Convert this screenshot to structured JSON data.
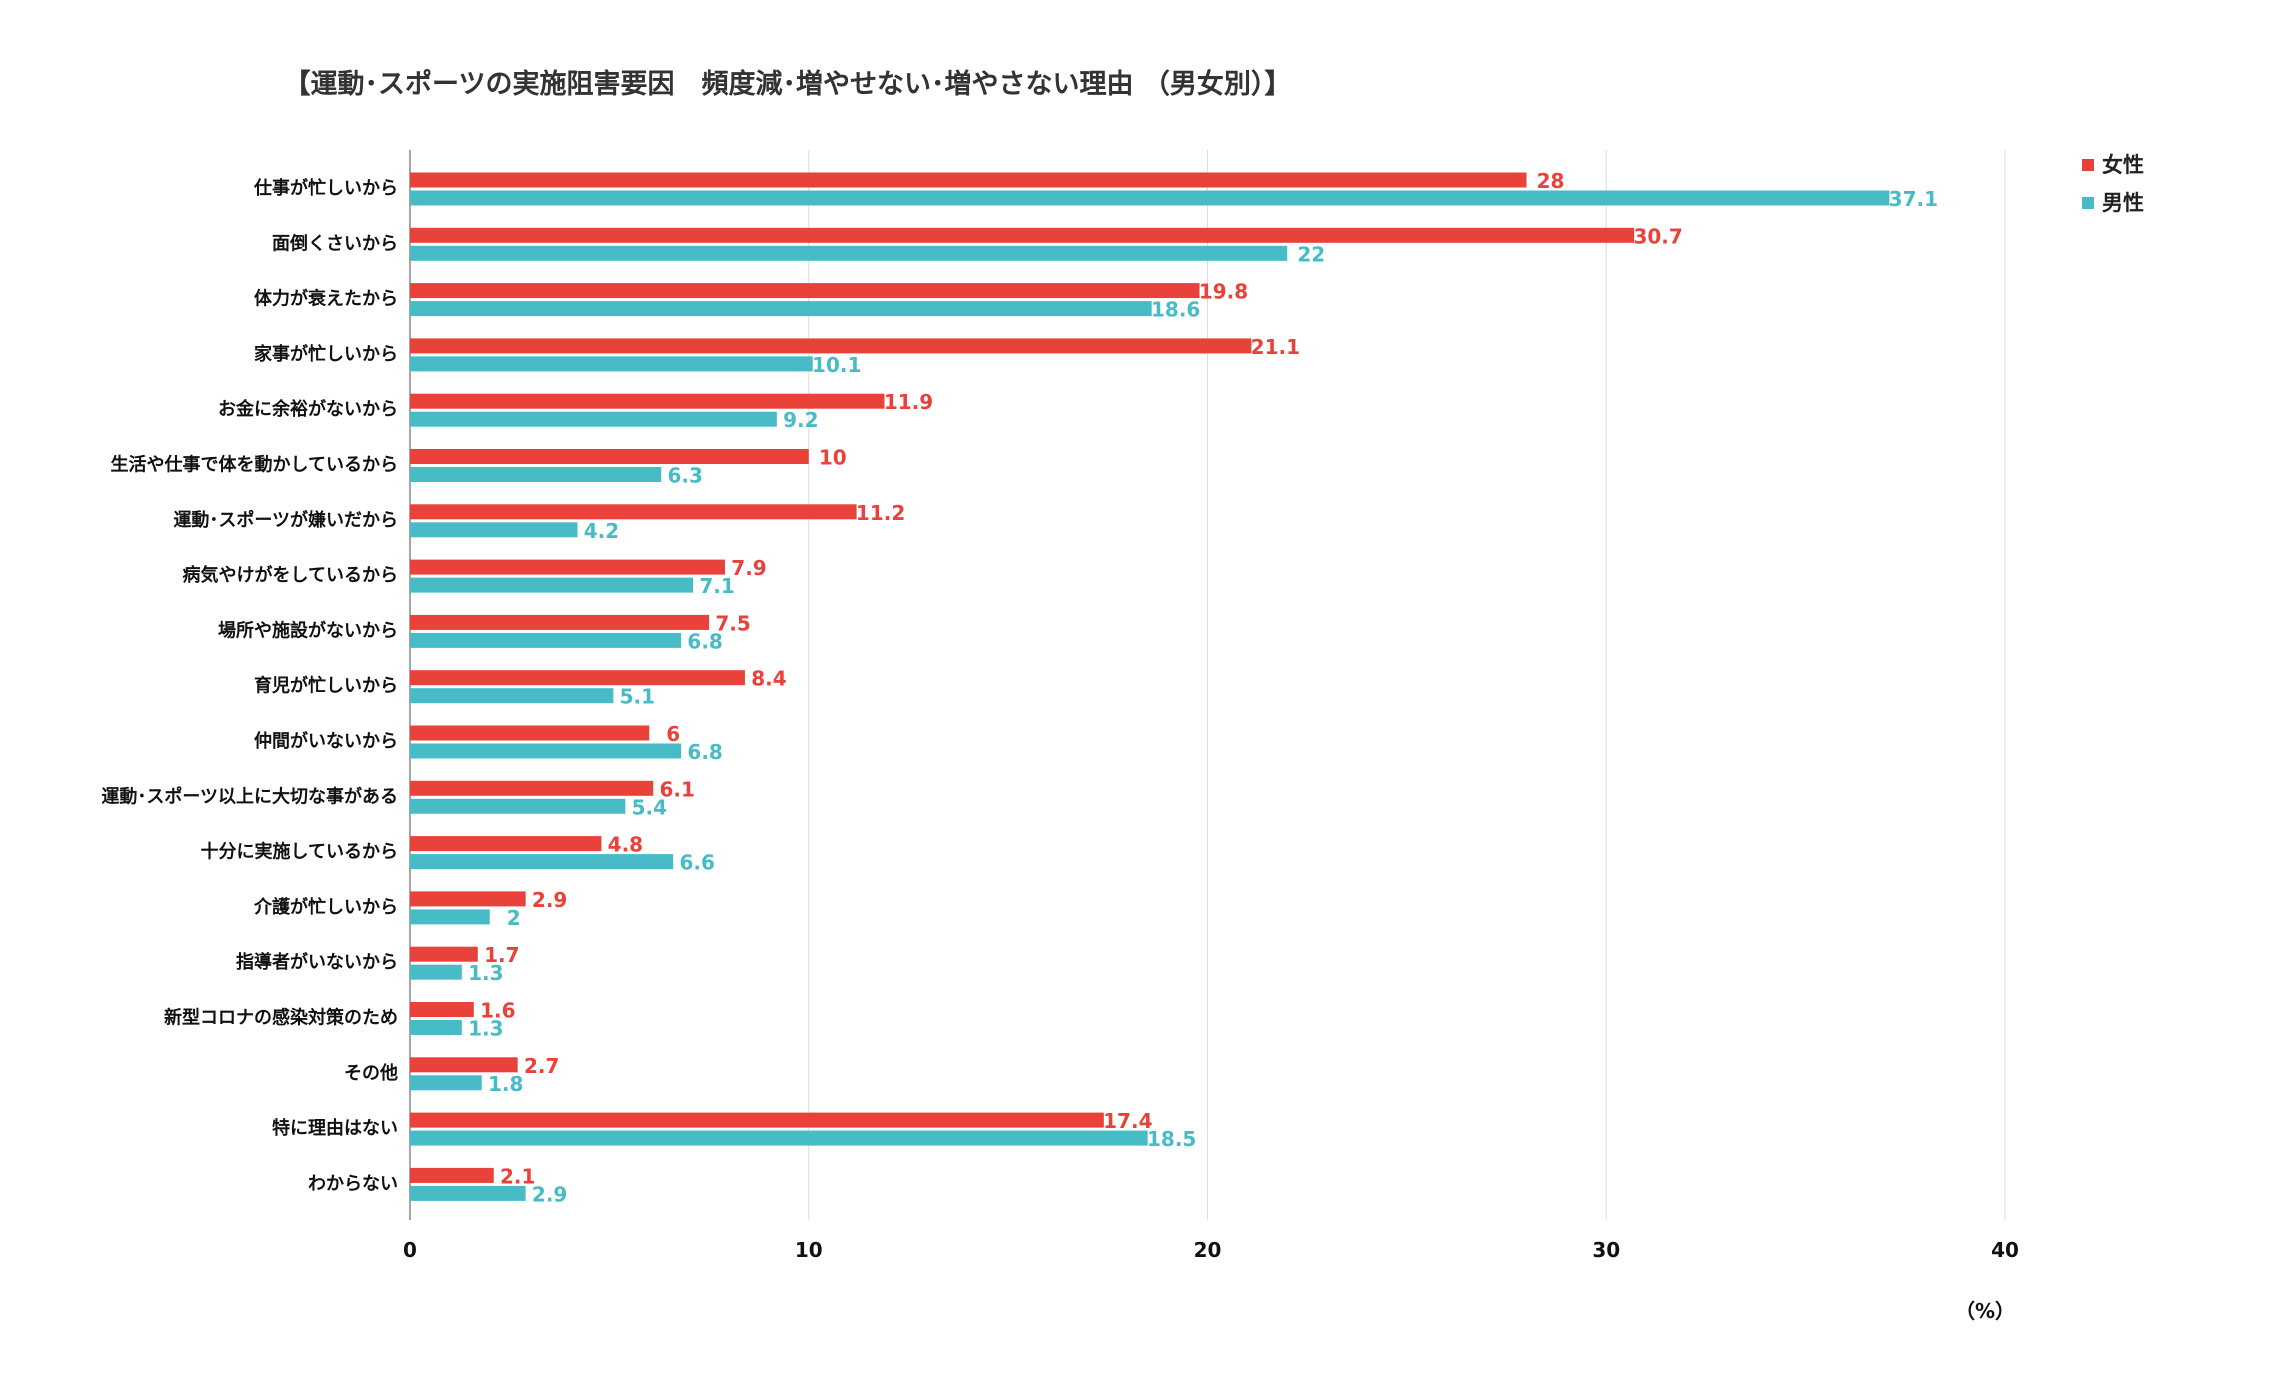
{
  "chart_data": {
    "type": "bar",
    "orientation": "horizontal",
    "title": "【運動･スポーツの実施阻害要因　頻度減･増やせない･増やさない理由 （男女別）】",
    "unit": "（%）",
    "xlim": [
      0,
      40
    ],
    "xticks": [
      0,
      10,
      20,
      30,
      40
    ],
    "grid": true,
    "legend_position": "top-right",
    "categories": [
      "仕事が忙しいから",
      "面倒くさいから",
      "体力が衰えたから",
      "家事が忙しいから",
      "お金に余裕がないから",
      "生活や仕事で体を動かしているから",
      "運動･スポーツが嫌いだから",
      "病気やけがをしているから",
      "場所や施設がないから",
      "育児が忙しいから",
      "仲間がいないから",
      "運動･スポーツ以上に大切な事がある",
      "十分に実施しているから",
      "介護が忙しいから",
      "指導者がいないから",
      "新型コロナの感染対策のため",
      "その他",
      "特に理由はない",
      "わからない"
    ],
    "series": [
      {
        "name": "女性",
        "color": "#e8423a",
        "values": [
          28,
          30.7,
          19.8,
          21.1,
          11.9,
          10,
          11.2,
          7.9,
          7.5,
          8.4,
          6,
          6.1,
          4.8,
          2.9,
          1.7,
          1.6,
          2.7,
          17.4,
          2.1
        ]
      },
      {
        "name": "男性",
        "color": "#47bcc6",
        "values": [
          37.1,
          22,
          18.6,
          10.1,
          9.2,
          6.3,
          4.2,
          7.1,
          6.8,
          5.1,
          6.8,
          5.4,
          6.6,
          2,
          1.3,
          1.3,
          1.8,
          18.5,
          2.9
        ]
      }
    ]
  }
}
